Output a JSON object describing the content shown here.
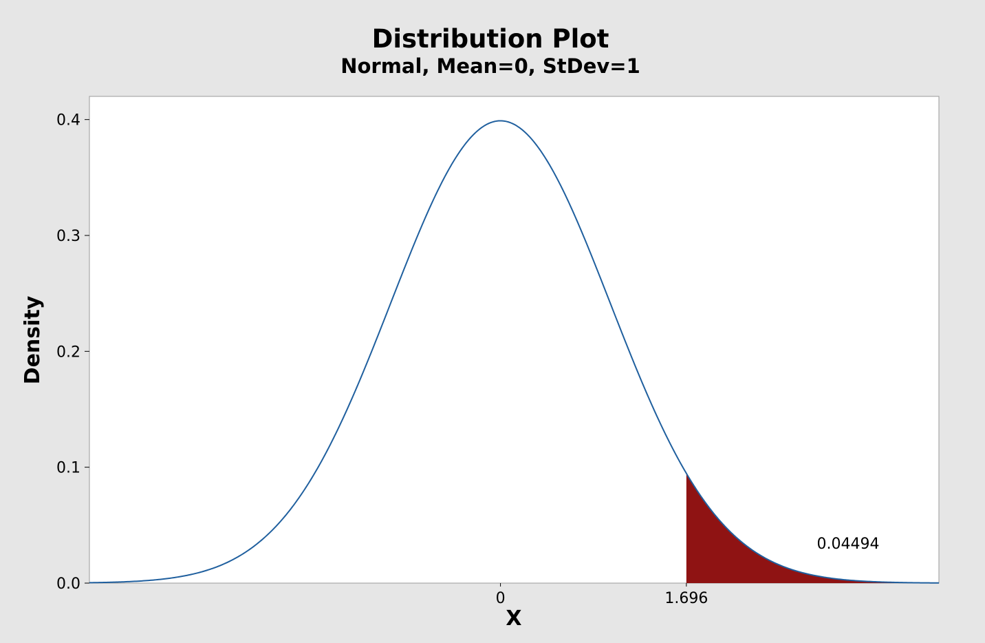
{
  "chart_data": {
    "type": "area",
    "title": "Distribution Plot",
    "subtitle": "Normal, Mean=0, StDev=1",
    "xlabel": "X",
    "ylabel": "Density",
    "distribution": "normal",
    "mean": 0,
    "stdev": 1,
    "xlim": [
      -3.75,
      4.0
    ],
    "ylim": [
      0,
      0.42
    ],
    "y_ticks": [
      "0.0",
      "0.1",
      "0.2",
      "0.3",
      "0.4"
    ],
    "x_ticks": [
      {
        "value": 0,
        "label": "0"
      },
      {
        "value": 1.696,
        "label": "1.696"
      }
    ],
    "shaded_region": {
      "from": 1.696,
      "to": 4.0,
      "probability_label": "0.04494"
    },
    "grid": false,
    "colors": {
      "curve": "#1f5f9e",
      "shade": "#8f1313",
      "plot_bg": "#ffffff",
      "figure_bg": "#e6e6e6"
    }
  }
}
